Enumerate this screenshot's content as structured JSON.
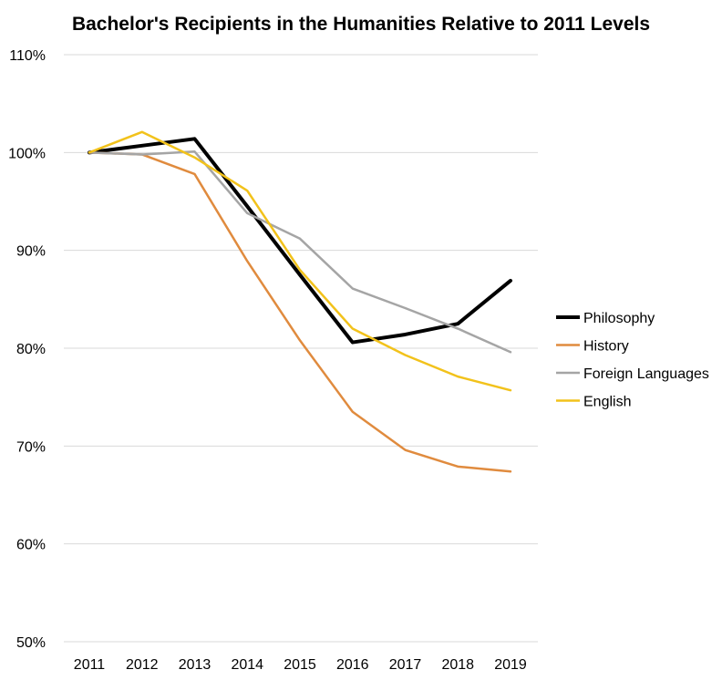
{
  "chart_data": {
    "type": "line",
    "title": "Bachelor's Recipients in the Humanities Relative to 2011 Levels",
    "x": [
      "2011",
      "2012",
      "2013",
      "2014",
      "2015",
      "2016",
      "2017",
      "2018",
      "2019"
    ],
    "ylim": [
      50,
      110
    ],
    "yticks": [
      50,
      60,
      70,
      80,
      90,
      100,
      110
    ],
    "ytick_labels": [
      "50%",
      "60%",
      "70%",
      "80%",
      "90%",
      "100%",
      "110%"
    ],
    "grid": true,
    "legend_position": "right",
    "series": [
      {
        "name": "Philosophy",
        "color": "#000000",
        "width": 4,
        "values": [
          100,
          100.7,
          101.4,
          94.5,
          87.5,
          80.6,
          81.4,
          82.5,
          86.9
        ]
      },
      {
        "name": "History",
        "color": "#e08b3e",
        "width": 2.5,
        "values": [
          100,
          99.8,
          97.8,
          88.9,
          80.8,
          73.5,
          69.6,
          67.9,
          67.4
        ]
      },
      {
        "name": "Foreign Languages",
        "color": "#a5a5a5",
        "width": 2.5,
        "values": [
          100,
          99.8,
          100.1,
          93.8,
          91.2,
          86.1,
          84.1,
          82.0,
          79.6
        ]
      },
      {
        "name": "English",
        "color": "#f2c21b",
        "width": 2.5,
        "values": [
          100,
          102.1,
          99.5,
          96.1,
          88.0,
          82.0,
          79.3,
          77.1,
          75.7
        ]
      }
    ]
  }
}
